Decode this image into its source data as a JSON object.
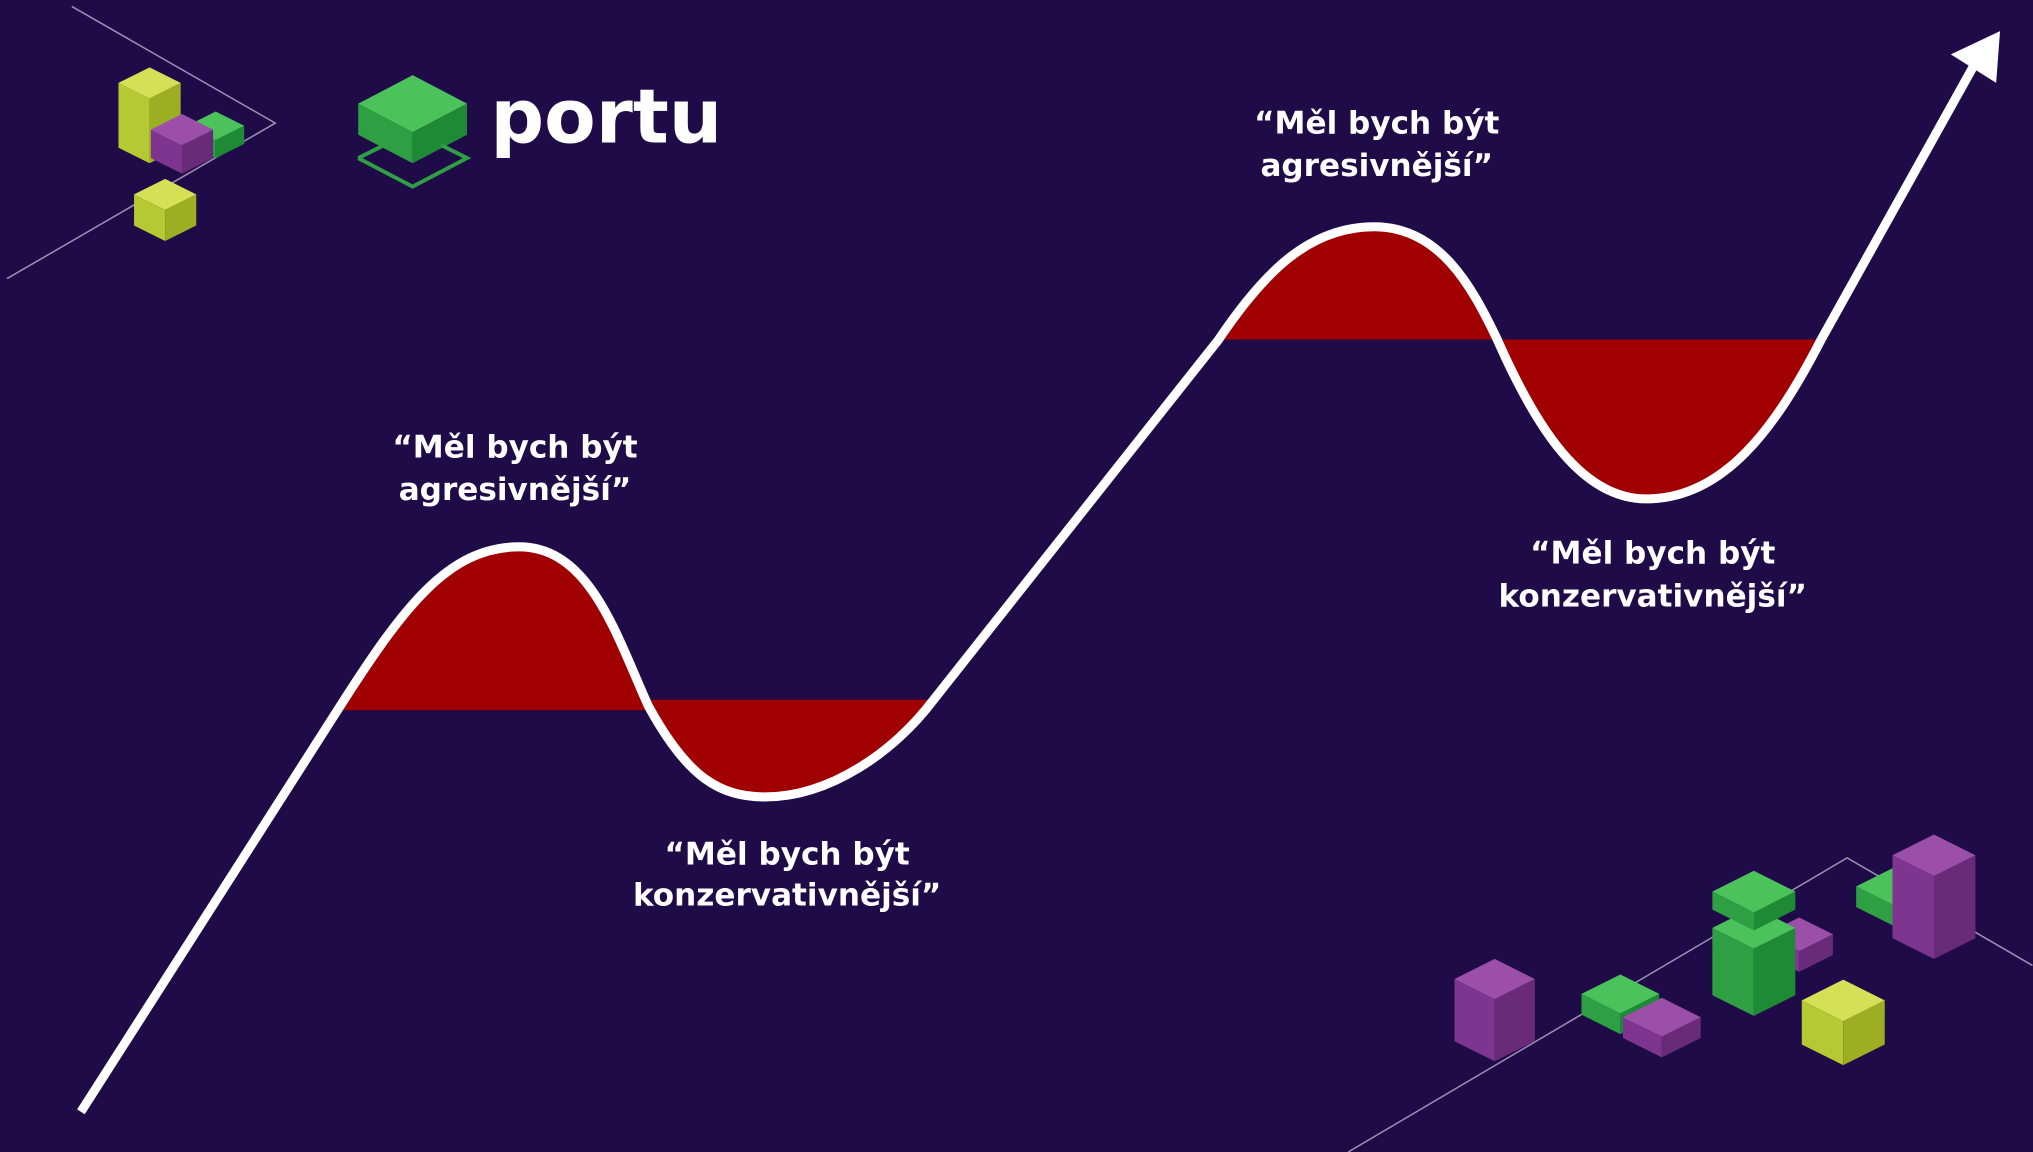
{
  "logo": {
    "text": "portu"
  },
  "annotations": [
    {
      "lines": [
        "“Měl bych být",
        "agresivnější”"
      ]
    },
    {
      "lines": [
        "“Měl bych být",
        "konzervativnější”"
      ]
    },
    {
      "lines": [
        "“Měl bych být",
        "agresivnější”"
      ]
    },
    {
      "lines": [
        "“Měl bych být",
        "konzervativnější”"
      ]
    }
  ]
}
